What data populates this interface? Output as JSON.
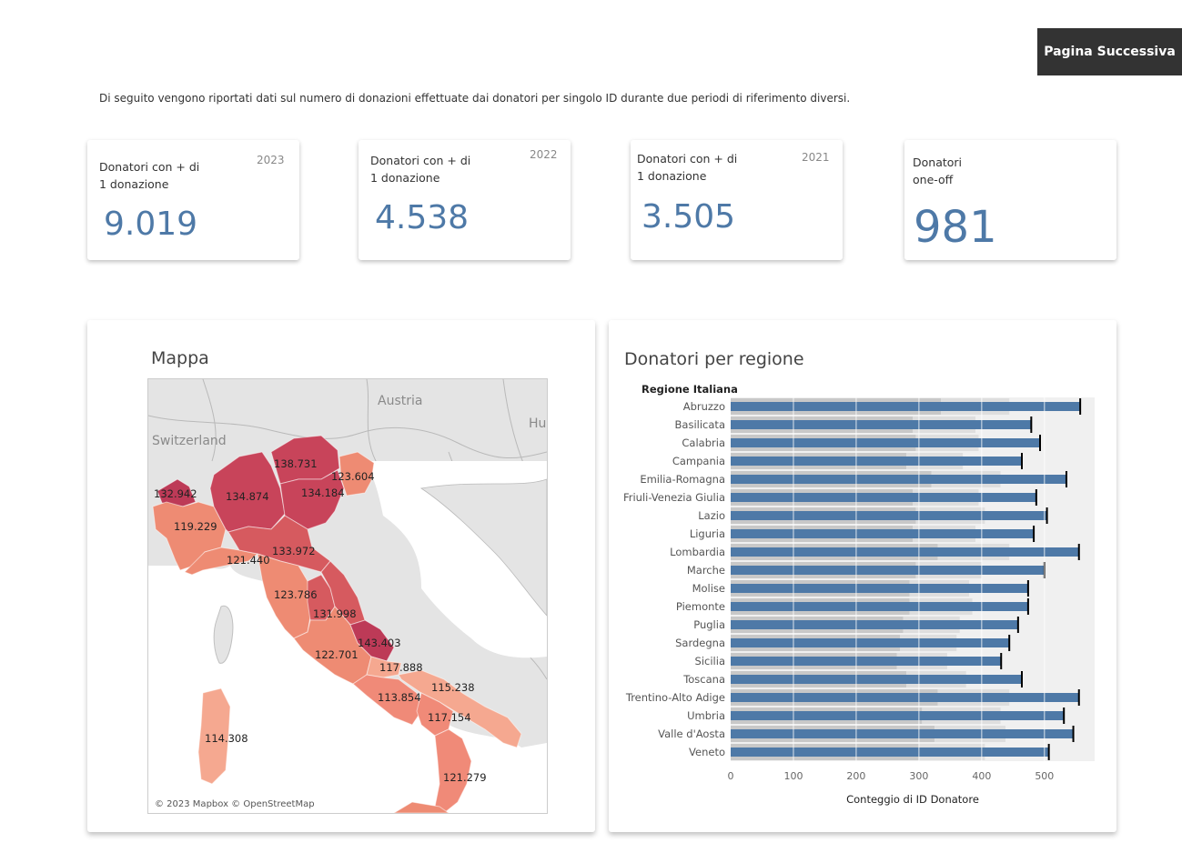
{
  "header": {
    "next_button": "Pagina Successiva"
  },
  "intro": "Di seguito vengono riportati dati sul numero di donazioni effettuate dai donatori per singolo ID durante due periodi di riferimento diversi.",
  "kpis": [
    {
      "label_l1": "Donatori con + di",
      "label_l2": "1 donazione",
      "year": "2023",
      "value": "9.019"
    },
    {
      "label_l1": "Donatori con + di",
      "label_l2": "1 donazione",
      "year": "2022",
      "value": "4.538"
    },
    {
      "label_l1": "Donatori con + di",
      "label_l2": "1 donazione",
      "year": "2021",
      "value": "3.505"
    },
    {
      "label_l1": "Donatori",
      "label_l2": "one-off",
      "year": "",
      "value": "981"
    }
  ],
  "map": {
    "title": "Mappa",
    "credit": "© 2023 Mapbox © OpenStreetMap",
    "country_labels": [
      "Austria",
      "Switzerland",
      "Hu"
    ],
    "region_values": [
      "138.731",
      "123.604",
      "132.942",
      "134.874",
      "134.184",
      "119.229",
      "121.440",
      "133.972",
      "123.786",
      "131.998",
      "143.403",
      "122.701",
      "117.888",
      "115.238",
      "113.854",
      "117.154",
      "114.308",
      "121.279"
    ],
    "colors": {
      "dark": "#bd3a57",
      "mid": "#d65a5f",
      "light": "#ee8b73",
      "pale": "#f5a890"
    }
  },
  "bar_panel": {
    "title": "Donatori per regione"
  },
  "chart_data": {
    "type": "bar",
    "orientation": "horizontal",
    "row_header": "Regione Italiana",
    "xlabel": "Conteggio di ID Donatore",
    "x_ticks": [
      "0",
      "100",
      "200",
      "300",
      "400",
      "500"
    ],
    "xlim": [
      0,
      580
    ],
    "categories": [
      "Abruzzo",
      "Basilicata",
      "Calabria",
      "Campania",
      "Emilia-Romagna",
      "Friuli-Venezia Giulia",
      "Lazio",
      "Liguria",
      "Lombardia",
      "Marche",
      "Molise",
      "Piemonte",
      "Puglia",
      "Sardegna",
      "Sicilia",
      "Toscana",
      "Trentino-Alto Adige",
      "Umbria",
      "Valle d'Aosta",
      "Veneto"
    ],
    "values": [
      557,
      479,
      493,
      464,
      535,
      487,
      504,
      483,
      555,
      500,
      474,
      474,
      458,
      444,
      431,
      464,
      555,
      531,
      546,
      507
    ],
    "reference_marks": [
      557,
      479,
      493,
      464,
      535,
      487,
      504,
      483,
      555,
      500,
      474,
      474,
      458,
      444,
      431,
      464,
      555,
      531,
      546,
      507
    ],
    "background_bands": [
      [
        335,
        444
      ],
      [
        290,
        390
      ],
      [
        295,
        395
      ],
      [
        280,
        370
      ],
      [
        320,
        430
      ],
      [
        290,
        395
      ],
      [
        295,
        405
      ],
      [
        290,
        390
      ],
      [
        330,
        444
      ],
      [
        295,
        400
      ],
      [
        285,
        380
      ],
      [
        285,
        385
      ],
      [
        275,
        365
      ],
      [
        270,
        360
      ],
      [
        265,
        345
      ],
      [
        280,
        375
      ],
      [
        330,
        444
      ],
      [
        305,
        430
      ],
      [
        325,
        438
      ],
      [
        300,
        405
      ]
    ],
    "colors": {
      "bar": "#4e79a7",
      "band_dark": "#c8c8c8",
      "band_light": "#dedede",
      "panel_bg": "#f0f0f0",
      "marker": "#000000"
    },
    "grid": true
  }
}
